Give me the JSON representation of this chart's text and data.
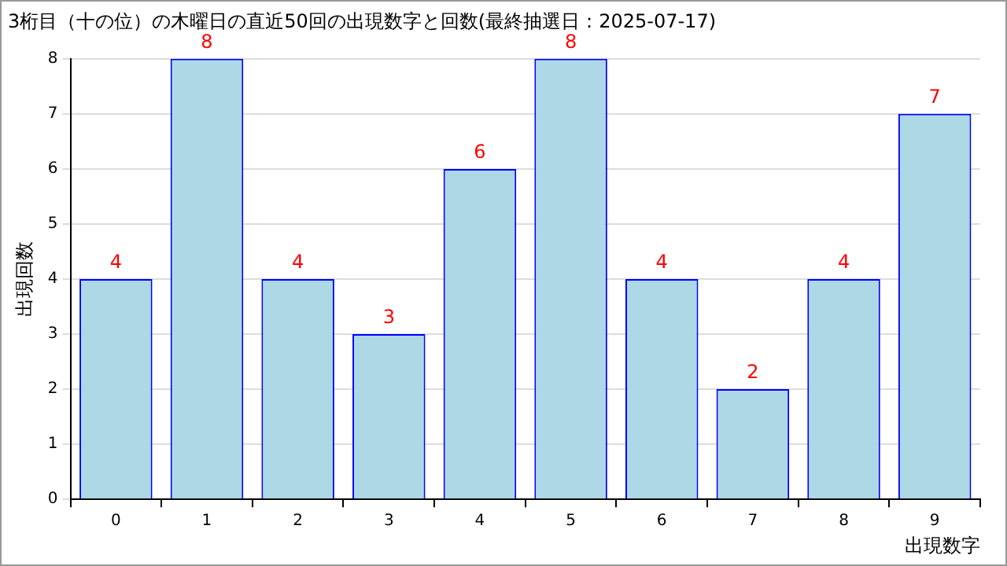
{
  "chart_data": {
    "type": "bar",
    "title": "3桁目（十の位）の木曜日の直近50回の出現数字と回数(最終抽選日：2025-07-17)",
    "xlabel": "出現数字",
    "ylabel": "出現回数",
    "categories": [
      "0",
      "1",
      "2",
      "3",
      "4",
      "5",
      "6",
      "7",
      "8",
      "9"
    ],
    "values": [
      4,
      8,
      4,
      3,
      6,
      8,
      4,
      2,
      4,
      7
    ],
    "color": "#add8e6",
    "ylim": [
      0,
      8
    ],
    "yticks": [
      0,
      1,
      2,
      3,
      4,
      5,
      6,
      7,
      8
    ],
    "grid": "y",
    "data_labels": true,
    "legend": false
  }
}
